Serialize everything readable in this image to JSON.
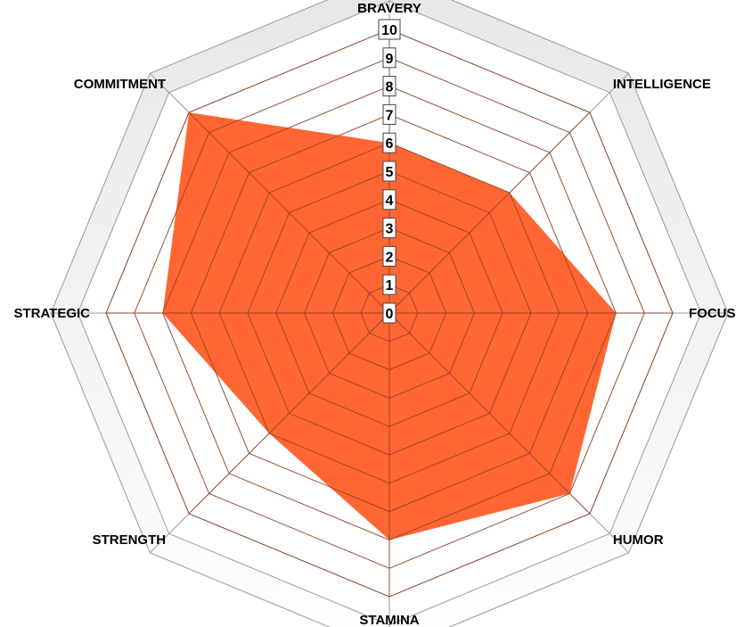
{
  "chart_data": {
    "type": "radar",
    "title": "",
    "axes": [
      "BRAVERY",
      "INTELLIGENCE",
      "FOCUS",
      "HUMOR",
      "STAMINA",
      "STRENGTH",
      "STRATEGIC",
      "COMMITMENT"
    ],
    "ticks": [
      "0",
      "1",
      "2",
      "3",
      "4",
      "5",
      "6",
      "7",
      "8",
      "9",
      "10"
    ],
    "range": [
      0,
      10
    ],
    "grid": true,
    "series": [
      {
        "values": [
          6,
          6,
          8,
          9,
          8,
          6,
          8,
          10
        ],
        "color": "#ff6633"
      }
    ]
  },
  "colors": {
    "fill": "#ff6633",
    "grid_line": "#8a3a1a",
    "outer_band_light": "#f7f7f7",
    "outer_band_dark": "#e3e3e3",
    "spoke": "#999999"
  }
}
